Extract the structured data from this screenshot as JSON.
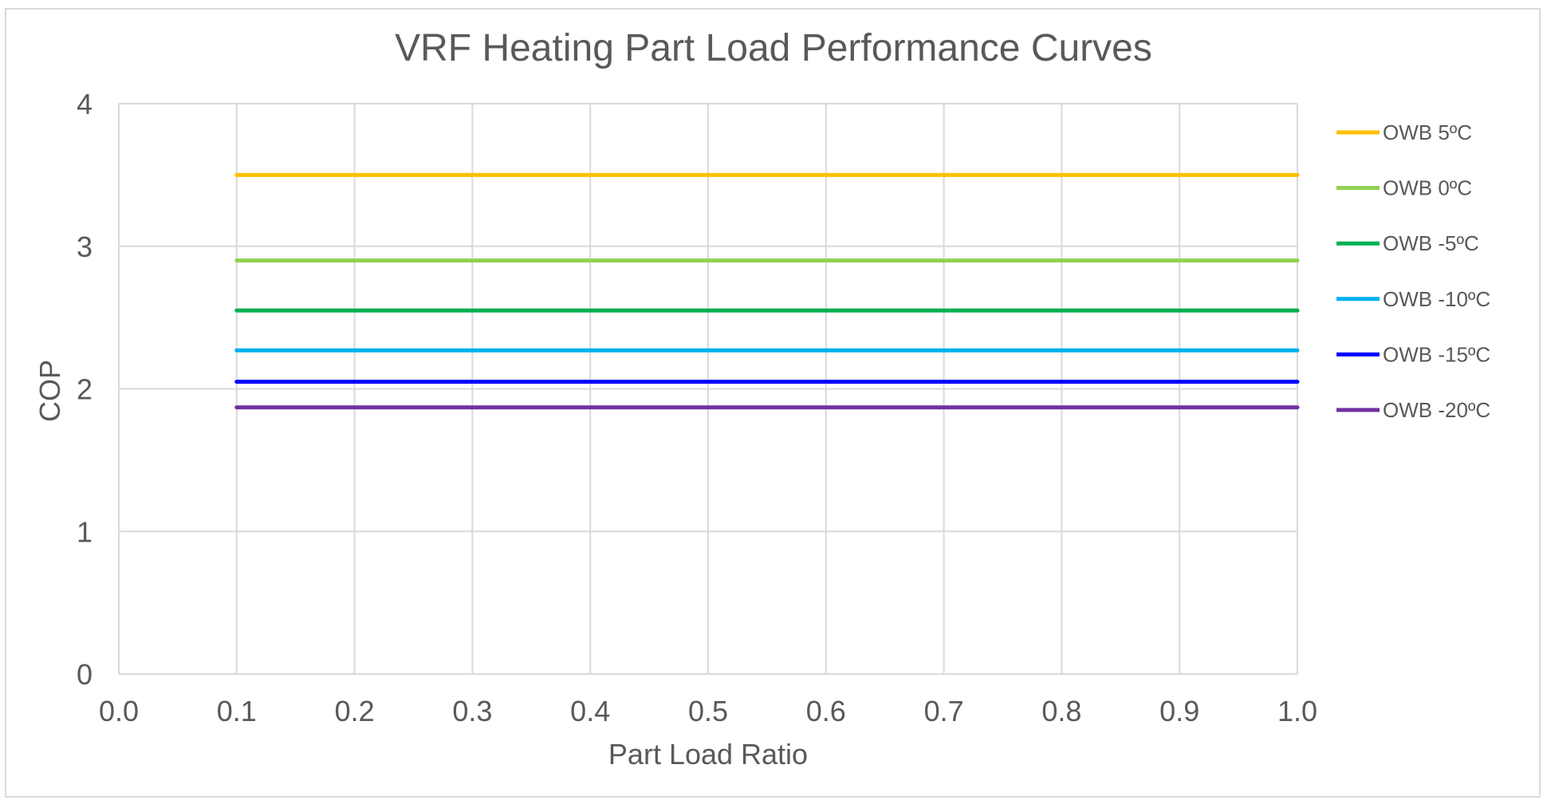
{
  "chart_data": {
    "type": "line",
    "title": "VRF Heating Part Load Performance Curves",
    "xlabel": "Part Load Ratio",
    "ylabel": "COP",
    "xlim": [
      0.0,
      1.0
    ],
    "ylim": [
      0,
      4
    ],
    "x_ticks": [
      "0.0",
      "0.1",
      "0.2",
      "0.3",
      "0.4",
      "0.5",
      "0.6",
      "0.7",
      "0.8",
      "0.9",
      "1.0"
    ],
    "y_ticks": [
      "0",
      "1",
      "2",
      "3",
      "4"
    ],
    "grid": true,
    "legend": "right",
    "series": [
      {
        "name": "OWB 5ºC",
        "color": "#FFC000",
        "x": [
          0.1,
          1.0
        ],
        "y": [
          3.5,
          3.5
        ]
      },
      {
        "name": "OWB 0ºC",
        "color": "#92D050",
        "x": [
          0.1,
          1.0
        ],
        "y": [
          2.9,
          2.9
        ]
      },
      {
        "name": "OWB -5ºC",
        "color": "#00B050",
        "x": [
          0.1,
          1.0
        ],
        "y": [
          2.55,
          2.55
        ]
      },
      {
        "name": "OWB -10ºC",
        "color": "#00B0F0",
        "x": [
          0.1,
          1.0
        ],
        "y": [
          2.27,
          2.27
        ]
      },
      {
        "name": "OWB -15ºC",
        "color": "#0000FF",
        "x": [
          0.1,
          1.0
        ],
        "y": [
          2.05,
          2.05
        ]
      },
      {
        "name": "OWB -20ºC",
        "color": "#7030A0",
        "x": [
          0.1,
          1.0
        ],
        "y": [
          1.87,
          1.87
        ]
      }
    ]
  }
}
